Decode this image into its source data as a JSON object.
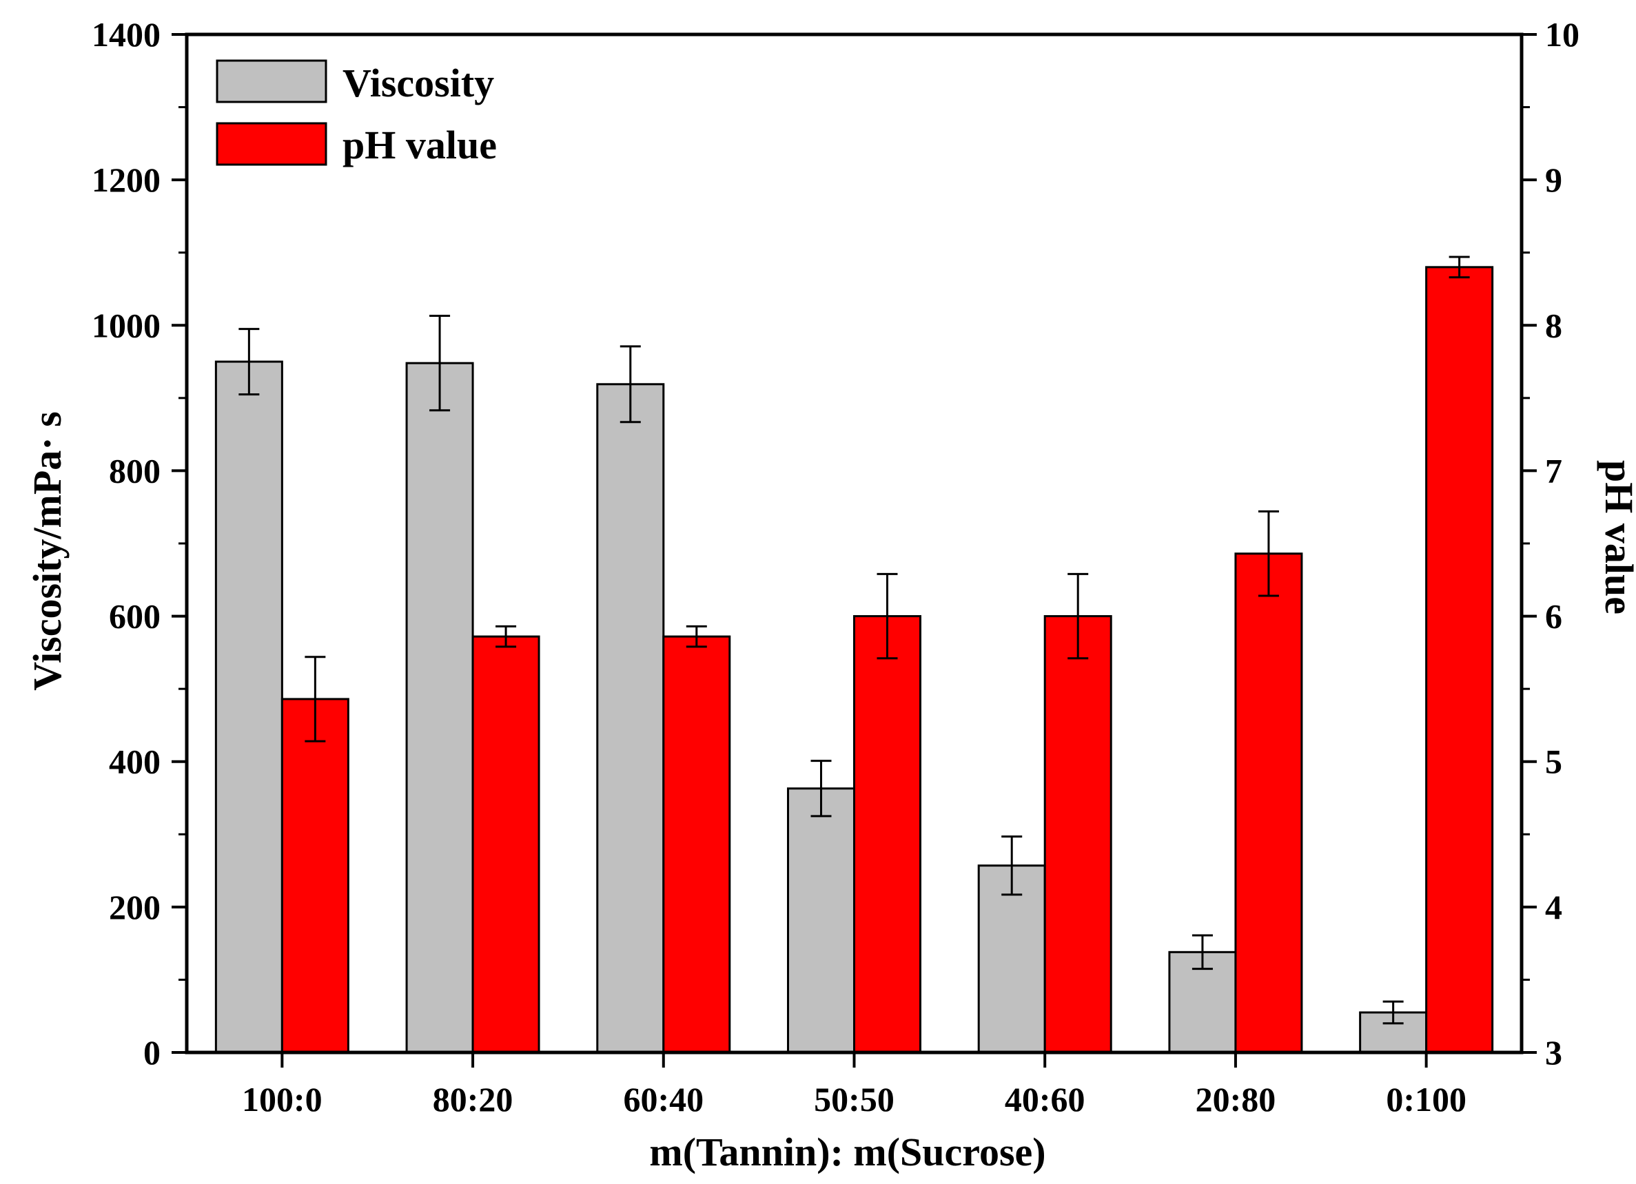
{
  "chart_data": {
    "type": "bar",
    "categories": [
      "100:0",
      "80:20",
      "60:40",
      "50:50",
      "40:60",
      "20:80",
      "0:100"
    ],
    "series": [
      {
        "name": "Viscosity",
        "axis": "left",
        "color": "#c0c0c0",
        "values": [
          950,
          948,
          919,
          363,
          257,
          138,
          55
        ],
        "errors": [
          45,
          65,
          52,
          38,
          40,
          23,
          15
        ]
      },
      {
        "name": "pH value",
        "axis": "right",
        "color": "#ff0000",
        "values": [
          5.43,
          5.86,
          5.86,
          6.0,
          6.0,
          6.43,
          8.4
        ],
        "errors": [
          0.29,
          0.07,
          0.07,
          0.29,
          0.29,
          0.29,
          0.07
        ]
      }
    ],
    "xlabel": "m(Tannin): m(Sucrose)",
    "ylabel": "Viscosity/mPa· s",
    "y2label": "pH value",
    "ylim": [
      0,
      1400
    ],
    "y2lim": [
      3,
      10
    ],
    "yticks": [
      "0",
      "200",
      "400",
      "600",
      "800",
      "1000",
      "1200",
      "1400"
    ],
    "y2ticks": [
      "3",
      "4",
      "5",
      "6",
      "7",
      "8",
      "9",
      "10"
    ],
    "legend": "top-left",
    "grid": false
  }
}
